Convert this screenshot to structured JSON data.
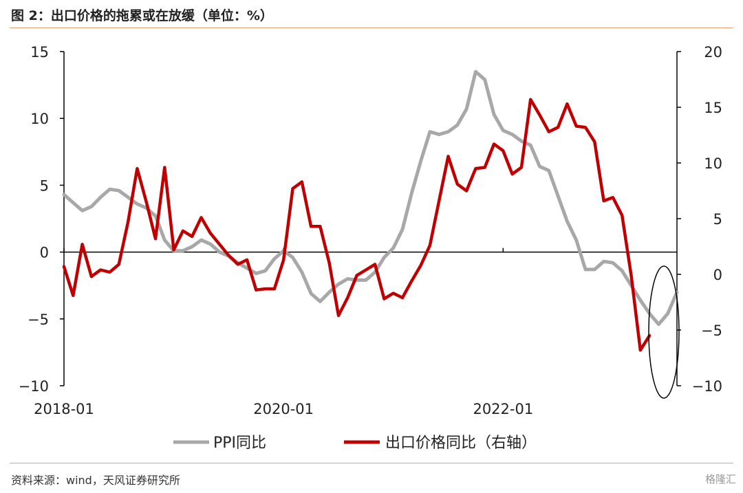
{
  "title": "图 2：出口价格的拖累或在放缓（单位：%）",
  "source": "资料来源：wind，天风证券研究所",
  "watermark": "格隆汇",
  "colors": {
    "ppi": "#a8a8a8",
    "export": "#c00000",
    "rule": "#e8a070"
  },
  "chart_data": {
    "type": "line",
    "x_ticks": [
      "2018-01",
      "2020-01",
      "2022-01"
    ],
    "left_axis": {
      "min": -10,
      "max": 15,
      "ticks": [
        -10,
        -5,
        0,
        5,
        10,
        15
      ]
    },
    "right_axis": {
      "min": -10,
      "max": 20,
      "ticks": [
        -10,
        -5,
        0,
        5,
        10,
        15,
        20
      ]
    },
    "legend": {
      "placement": "bottom"
    },
    "series": [
      {
        "name": "PPI同比",
        "axis": "left",
        "values": [
          4.3,
          3.7,
          3.1,
          3.4,
          4.1,
          4.7,
          4.6,
          4.1,
          3.6,
          3.3,
          2.7,
          0.9,
          0.1,
          0.1,
          0.4,
          0.9,
          0.6,
          0.0,
          -0.3,
          -0.8,
          -1.2,
          -1.6,
          -1.4,
          -0.5,
          0.1,
          -0.4,
          -1.5,
          -3.1,
          -3.7,
          -3.0,
          -2.4,
          -2.0,
          -2.1,
          -2.1,
          -1.5,
          -0.4,
          0.3,
          1.7,
          4.4,
          6.8,
          9.0,
          8.8,
          9.0,
          9.5,
          10.7,
          13.5,
          12.9,
          10.3,
          9.1,
          8.8,
          8.3,
          8.0,
          6.4,
          6.1,
          4.2,
          2.3,
          0.9,
          -1.3,
          -1.3,
          -0.7,
          -0.8,
          -1.4,
          -2.5,
          -3.6,
          -4.6,
          -5.4,
          -4.6,
          -3.0
        ]
      },
      {
        "name": "出口价格同比（右轴）",
        "axis": "right",
        "values": [
          0.7,
          -1.9,
          2.7,
          -0.2,
          0.4,
          0.2,
          0.9,
          4.7,
          9.5,
          6.5,
          3.2,
          9.6,
          2.2,
          3.9,
          3.4,
          5.1,
          3.7,
          2.7,
          1.7,
          0.9,
          1.3,
          -1.4,
          -1.3,
          -1.3,
          1.3,
          7.7,
          8.3,
          4.3,
          4.3,
          1.0,
          -3.7,
          -2.1,
          -0.1,
          0.4,
          0.9,
          -2.2,
          -1.7,
          -2.1,
          -0.6,
          0.8,
          2.6,
          6.6,
          10.6,
          8.1,
          7.5,
          9.5,
          9.6,
          11.7,
          11.1,
          9.0,
          9.6,
          15.7,
          14.3,
          12.8,
          13.2,
          15.3,
          13.3,
          13.2,
          11.9,
          6.6,
          6.9,
          5.3,
          -0.1,
          -6.8,
          -5.5
        ]
      }
    ]
  }
}
